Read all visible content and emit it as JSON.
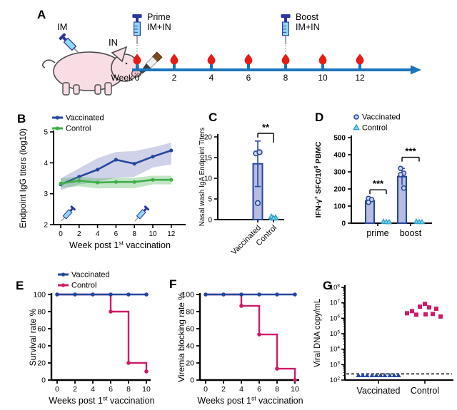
{
  "colors": {
    "navy": "#26479e",
    "green": "#3fae4a",
    "magenta": "#cf1b68",
    "navy_band": "rgba(85,95,175,0.28)",
    "green_band": "rgba(80,180,90,0.35)",
    "bar_fill": "#b7bce2",
    "point_fill": "#cdd3ee",
    "cyan_fill": "#7fd4ea",
    "cyan_stroke": "#2b9fc4",
    "blood_red": "#e51d15",
    "timeline_blue": "#1b75bc",
    "syringe_body": "#8fd9f5",
    "syringe_dark": "#2a35a0",
    "atomizer_cap": "#7a4a20",
    "atomizer_dark": "#3f3f3f",
    "pig_pink": "#f8dde4",
    "pig_outline": "#4a4a4a",
    "axis": "#000000"
  },
  "panelA": {
    "label": "A",
    "im": "IM",
    "in": "IN",
    "prime": [
      "Prime",
      "IM+IN"
    ],
    "boost": [
      "Boost",
      "IM+IN"
    ],
    "week_label": "Week",
    "weeks": [
      0,
      2,
      4,
      6,
      8,
      10,
      12
    ],
    "prime_week": 0,
    "boost_week": 8
  },
  "panelB": {
    "label": "B",
    "legend": [
      {
        "label": "Vaccinated",
        "color": "navy"
      },
      {
        "label": "Control",
        "color": "green"
      }
    ],
    "chart": {
      "type": "line",
      "x": [
        0,
        2,
        4,
        6,
        8,
        10,
        12
      ],
      "series": [
        {
          "name": "Vaccinated",
          "color": "navy",
          "band": "navy_band",
          "values": [
            3.3,
            3.55,
            3.78,
            4.1,
            3.97,
            4.2,
            4.4
          ],
          "band_lo": [
            3.12,
            3.3,
            3.38,
            3.52,
            3.55,
            3.85,
            3.95
          ],
          "band_hi": [
            3.5,
            3.82,
            4.15,
            4.35,
            4.38,
            4.5,
            4.65
          ]
        },
        {
          "name": "Control",
          "color": "green",
          "band": "green_band",
          "values": [
            3.33,
            3.42,
            3.36,
            3.38,
            3.38,
            3.45,
            3.45
          ],
          "band_lo": [
            3.2,
            3.24,
            3.17,
            3.18,
            3.18,
            3.3,
            3.3
          ],
          "band_hi": [
            3.5,
            3.55,
            3.5,
            3.52,
            3.52,
            3.58,
            3.58
          ]
        }
      ],
      "ylim": [
        2,
        5
      ],
      "yticks": [
        2,
        3,
        4,
        5
      ],
      "xticks": [
        0,
        2,
        4,
        6,
        8,
        10,
        12
      ],
      "ylabel": "Endpoint IgG titers (log10)",
      "xlabel_segments": [
        {
          "t": "Week post 1"
        },
        {
          "t": "st",
          "sup": true
        },
        {
          "t": " vaccination"
        }
      ],
      "syringe_weeks": [
        0.3,
        8.3
      ]
    }
  },
  "panelC": {
    "label": "C",
    "chart": {
      "type": "bar",
      "categories": [
        "Vaccinated",
        "Control"
      ],
      "values": [
        13.5,
        0.4
      ],
      "err_up": [
        5.5,
        0.4
      ],
      "err_dn": [
        5.5,
        0
      ],
      "points": [
        [
          16,
          16.3,
          4
        ],
        [
          0.7,
          0.45,
          0.3
        ]
      ],
      "ylim": [
        0,
        20
      ],
      "yticks": [
        0,
        5,
        10,
        15,
        20
      ],
      "ylabel": "Nasal wash IgA Endpoint Titers",
      "sig": "**"
    }
  },
  "panelD": {
    "label": "D",
    "legend": [
      {
        "label": "Vaccinated",
        "marker": "circle"
      },
      {
        "label": "Control",
        "marker": "triangle"
      }
    ],
    "chart": {
      "type": "grouped-bar",
      "groups": [
        "prime",
        "boost"
      ],
      "vaccinated": {
        "values": [
          130,
          272
        ],
        "err": [
          15,
          48
        ],
        "points": [
          [
            145,
            138,
            122
          ],
          [
            320,
            292,
            284,
            205
          ]
        ]
      },
      "control": {
        "values": [
          3,
          3
        ],
        "points": [
          [
            5,
            3,
            2
          ],
          [
            5,
            3,
            2
          ]
        ]
      },
      "ylim": [
        0,
        500
      ],
      "yticks": [
        0,
        100,
        200,
        300,
        400,
        500
      ],
      "ylabel_segments": [
        {
          "t": "IFN-γ"
        },
        {
          "t": "+",
          "sup": true
        },
        {
          "t": " SFC/10"
        },
        {
          "t": "6",
          "sup": true
        },
        {
          "t": " PBMC"
        }
      ],
      "sig": [
        "***",
        "***"
      ]
    }
  },
  "panelE": {
    "label": "E",
    "legend": [
      {
        "label": "Vaccinated",
        "color": "navy"
      },
      {
        "label": "Control",
        "color": "magenta"
      }
    ],
    "chart": {
      "type": "km",
      "ylabel": "Survival rate %",
      "xlabel_segments": [
        {
          "t": "Weeks post 1"
        },
        {
          "t": "st",
          "sup": true
        },
        {
          "t": " vaccination"
        }
      ],
      "ylim": [
        0,
        100
      ],
      "yticks": [
        0,
        20,
        40,
        60,
        80,
        100
      ],
      "xticks": [
        0,
        2,
        4,
        6,
        8,
        10
      ],
      "vaccinated_x": [
        0,
        2,
        4,
        6,
        8,
        10
      ],
      "vaccinated_y": 100,
      "control_steps": [
        [
          0,
          100
        ],
        [
          6,
          100
        ],
        [
          6,
          80
        ],
        [
          8,
          80
        ],
        [
          8,
          20
        ],
        [
          10,
          20
        ],
        [
          10,
          10
        ]
      ],
      "control_markers": [
        [
          6,
          80
        ],
        [
          8,
          20
        ],
        [
          10,
          10
        ]
      ]
    }
  },
  "panelF": {
    "label": "F",
    "chart": {
      "type": "km",
      "ylabel": "Viremia blocking rate %",
      "xlabel_segments": [
        {
          "t": "Weeks post 1"
        },
        {
          "t": "st",
          "sup": true
        },
        {
          "t": " vaccination"
        }
      ],
      "ylim": [
        0,
        100
      ],
      "yticks": [
        0,
        20,
        40,
        60,
        80,
        100
      ],
      "xticks": [
        0,
        2,
        4,
        6,
        8,
        10
      ],
      "vaccinated_x": [
        0,
        2,
        4,
        6,
        8,
        10
      ],
      "vaccinated_y": 100,
      "control_steps": [
        [
          0,
          100
        ],
        [
          4,
          100
        ],
        [
          4,
          86.7
        ],
        [
          6,
          86.7
        ],
        [
          6,
          53.3
        ],
        [
          8,
          53.3
        ],
        [
          8,
          13.3
        ],
        [
          10,
          13.3
        ],
        [
          10,
          0
        ]
      ],
      "control_markers": [
        [
          4,
          86.7
        ],
        [
          6,
          53.3
        ],
        [
          8,
          13.3
        ],
        [
          10,
          0
        ]
      ]
    }
  },
  "panelG": {
    "label": "G",
    "chart": {
      "type": "log-scatter",
      "ylabel": "Viral DNA copy/mL",
      "decades": [
        2,
        3,
        4,
        5,
        6,
        7,
        8
      ],
      "categories": [
        "Vaccinated",
        "Control"
      ],
      "dashed_line": 250,
      "vaccinated_value": 200,
      "vaccinated_dx": [
        -28,
        -22,
        -16,
        -9,
        -3,
        3,
        9,
        16,
        22,
        28
      ],
      "control_points": [
        [
          -25,
          2100000
        ],
        [
          -18,
          2900000
        ],
        [
          -12,
          1700000
        ],
        [
          -7,
          5600000
        ],
        [
          0,
          8500000
        ],
        [
          6,
          5000000
        ],
        [
          16,
          4100000
        ],
        [
          1,
          1800000
        ],
        [
          11,
          1900000
        ],
        [
          22,
          1300000
        ]
      ]
    }
  }
}
